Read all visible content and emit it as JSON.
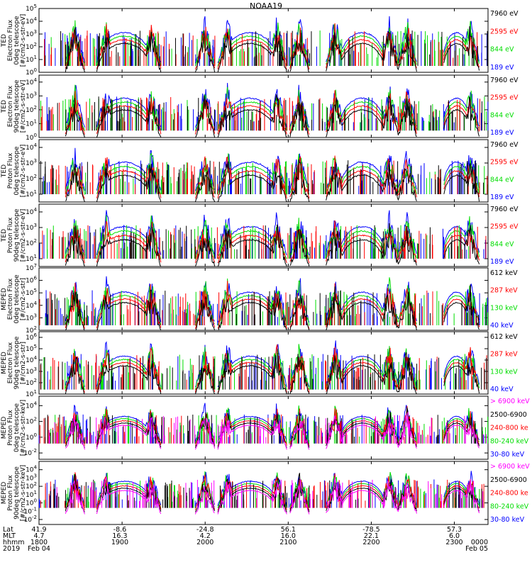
{
  "title": "NOAA19",
  "colors": {
    "black": "#000000",
    "red": "#ff0000",
    "green": "#00dd00",
    "blue": "#0000ff",
    "magenta": "#ff00ff"
  },
  "chart_data": [
    {
      "type": "line",
      "ylabel": [
        "TED",
        "Electron Flux",
        "0deg telescope",
        "[#/cm2-s-str-eV]"
      ],
      "ytick_exponents": [
        1,
        2,
        3,
        4,
        5
      ],
      "ytick_minor": [
        0
      ],
      "yrange": [
        0,
        5
      ],
      "legend": [
        {
          "name": "7960 eV",
          "color": "black"
        },
        {
          "name": "2595 eV",
          "color": "red"
        },
        {
          "name": "844 eV",
          "color": "green"
        },
        {
          "name": "189 eV",
          "color": "blue"
        }
      ],
      "data_description": "Electron flux spans roughly 1e0 to 1e4; dense bursts appear in auroral zones and smooth arcs reach about 1e2-1e3 over passes."
    },
    {
      "type": "line",
      "ylabel": [
        "TED",
        "Electron Flux",
        "90deg telescope",
        "[#/cm2-s-str-eV]"
      ],
      "ytick_exponents": [
        0,
        1,
        2,
        3,
        4
      ],
      "ytick_minor": [],
      "yrange": [
        0,
        4.5
      ],
      "legend": [
        {
          "name": "7960 eV",
          "color": "black"
        },
        {
          "name": "2595 eV",
          "color": "red"
        },
        {
          "name": "844 eV",
          "color": "green"
        },
        {
          "name": "189 eV",
          "color": "blue"
        }
      ]
    },
    {
      "type": "line",
      "ylabel": [
        "TED",
        "Proton Flux",
        "0deg telescope",
        "[#/cm2-s-str-eV]"
      ],
      "ytick_exponents": [
        1,
        2,
        3,
        4
      ],
      "ytick_minor": [],
      "yrange": [
        0.5,
        4.5
      ],
      "legend": [
        {
          "name": "7960 eV",
          "color": "black"
        },
        {
          "name": "2595 eV",
          "color": "red"
        },
        {
          "name": "844 eV",
          "color": "green"
        },
        {
          "name": "189 eV",
          "color": "blue"
        }
      ]
    },
    {
      "type": "line",
      "ylabel": [
        "TED",
        "Proton Flux",
        "90deg telescope",
        "[#/cm2-s-str-eV]"
      ],
      "ytick_exponents": [
        1,
        2,
        3,
        4
      ],
      "ytick_minor": [],
      "yrange": [
        0.5,
        4.5
      ],
      "legend": [
        {
          "name": "7960 eV",
          "color": "black"
        },
        {
          "name": "2595 eV",
          "color": "red"
        },
        {
          "name": "844 eV",
          "color": "green"
        },
        {
          "name": "189 eV",
          "color": "blue"
        }
      ]
    },
    {
      "type": "line",
      "ylabel": [
        "MEPED",
        "Electron Flux",
        "0deg telescope",
        "[#/cm2-s-str]"
      ],
      "ytick_exponents": [
        2,
        3,
        4,
        5,
        6,
        7
      ],
      "ytick_minor": [],
      "yrange": [
        2,
        7
      ],
      "legend": [
        {
          "name": "612 keV",
          "color": "black"
        },
        {
          "name": "287 keV",
          "color": "red"
        },
        {
          "name": "130 keV",
          "color": "green"
        },
        {
          "name": "40 keV",
          "color": "blue"
        }
      ]
    },
    {
      "type": "line",
      "ylabel": [
        "MEPED",
        "Electron Flux",
        "90deg telescope",
        "[#/cm2-s-str]"
      ],
      "ytick_exponents": [
        1,
        2,
        3,
        4,
        5,
        6
      ],
      "ytick_minor": [],
      "yrange": [
        1,
        6.5
      ],
      "legend": [
        {
          "name": "612 keV",
          "color": "black"
        },
        {
          "name": "287 keV",
          "color": "red"
        },
        {
          "name": "130 keV",
          "color": "green"
        },
        {
          "name": "40 keV",
          "color": "blue"
        }
      ]
    },
    {
      "type": "line",
      "ylabel": [
        "MEPED",
        "Proton Flux",
        "0deg telescope",
        "[#/cm2-s-str-keV]"
      ],
      "ytick_exponents": [
        -2,
        0,
        2,
        4
      ],
      "ytick_minor": [],
      "yrange": [
        -2.8,
        5.2
      ],
      "legend": [
        {
          "name": "> 6900 keV",
          "color": "magenta"
        },
        {
          "name": "2500-6900",
          "color": "black"
        },
        {
          "name": "240-800 ke",
          "color": "red"
        },
        {
          "name": "80-240 keV",
          "color": "green"
        },
        {
          "name": "30-80 keV",
          "color": "blue"
        }
      ]
    },
    {
      "type": "line",
      "ylabel": [
        "MEPED",
        "Proton Flux",
        "90deg telescope",
        "[#/cm2-s-str-keV]"
      ],
      "ytick_exponents": [
        -2,
        0,
        2,
        4
      ],
      "ytick_minor": [
        -1,
        1,
        3
      ],
      "yrange": [
        -2.6,
        5
      ],
      "legend": [
        {
          "name": "> 6900 keV",
          "color": "magenta"
        },
        {
          "name": "2500-6900",
          "color": "black"
        },
        {
          "name": "240-800 ke",
          "color": "red"
        },
        {
          "name": "80-240 keV",
          "color": "green"
        },
        {
          "name": "30-80 keV",
          "color": "blue"
        }
      ]
    }
  ],
  "xaxis": {
    "row_labels": [
      "Lat",
      "MLT",
      "hhmm",
      "2019"
    ],
    "tick_fraction": [
      0.0,
      0.185,
      0.37,
      0.555,
      0.74,
      0.925
    ],
    "tick_label_positions": [
      0.0,
      0.18,
      0.37,
      0.555,
      0.74,
      0.925,
      1.0
    ],
    "lat": [
      "41.9",
      "-8.6",
      "-24.8",
      "56.1",
      "-78.5",
      "57.3",
      ""
    ],
    "mlt": [
      "4.7",
      "16.3",
      "4.2",
      "16.0",
      "22.1",
      "6.0",
      ""
    ],
    "hhmm": [
      "1800",
      "1900",
      "2000",
      "2100",
      "2200",
      "2300",
      "0000"
    ],
    "date": [
      "Feb 04",
      "",
      "",
      "",
      "",
      "",
      "Feb 05"
    ]
  }
}
